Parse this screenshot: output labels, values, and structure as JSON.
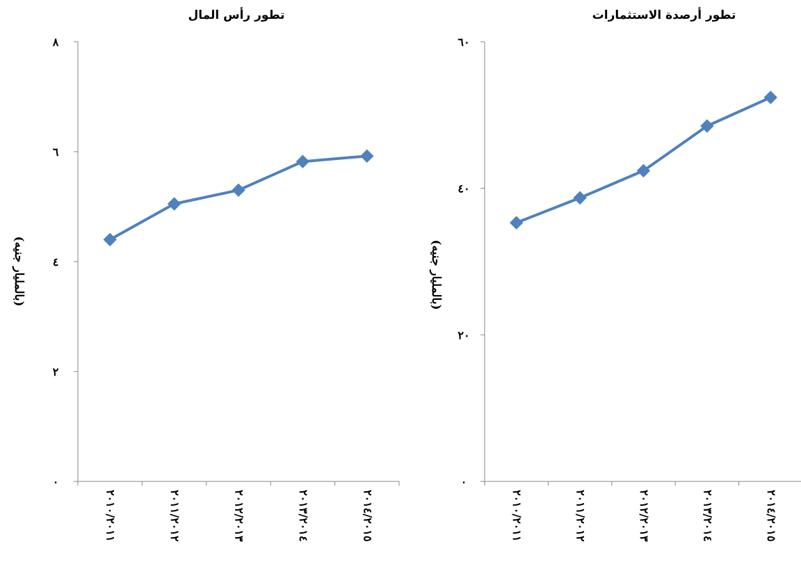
{
  "chart_data": [
    {
      "type": "line",
      "title": "تطور رأس المال",
      "ylabel": "(بالمليار جنيه)",
      "xlabel": "",
      "categories": [
        "٢٠١٠/٢٠١١",
        "٢٠١١/٢٠١٢",
        "٢٠١٢/٢٠١٣",
        "٢٠١٣/٢٠١٤",
        "٢٠١٤/٢٠١٥"
      ],
      "series": [
        {
          "values": [
            4.4,
            5.05,
            5.3,
            5.82,
            5.92
          ]
        }
      ],
      "ylim": [
        0,
        8
      ],
      "yticks": [
        0,
        2,
        4,
        6,
        8
      ],
      "ytick_labels": [
        "٠",
        "٢",
        "٤",
        "٦",
        "٨"
      ],
      "grid": false,
      "line_color": "#4F81BD",
      "marker": "diamond"
    },
    {
      "type": "line",
      "title": "تطور أرصدة الاستثمارات",
      "ylabel": "(بالمليار جنيه)",
      "xlabel": "",
      "categories": [
        "٢٠١٠/٢٠١١",
        "٢٠١١/٢٠١٢",
        "٢٠١٢/٢٠١٣",
        "٢٠١٣/٢٠١٤",
        "٢٠١٤/٢٠١٥"
      ],
      "series": [
        {
          "values": [
            35.3,
            38.7,
            42.4,
            48.5,
            52.4
          ]
        }
      ],
      "ylim": [
        0,
        60
      ],
      "yticks": [
        0,
        20,
        40,
        60
      ],
      "ytick_labels": [
        "٠",
        "٢٠",
        "٤٠",
        "٦٠"
      ],
      "grid": false,
      "line_color": "#4F81BD",
      "marker": "diamond"
    }
  ]
}
